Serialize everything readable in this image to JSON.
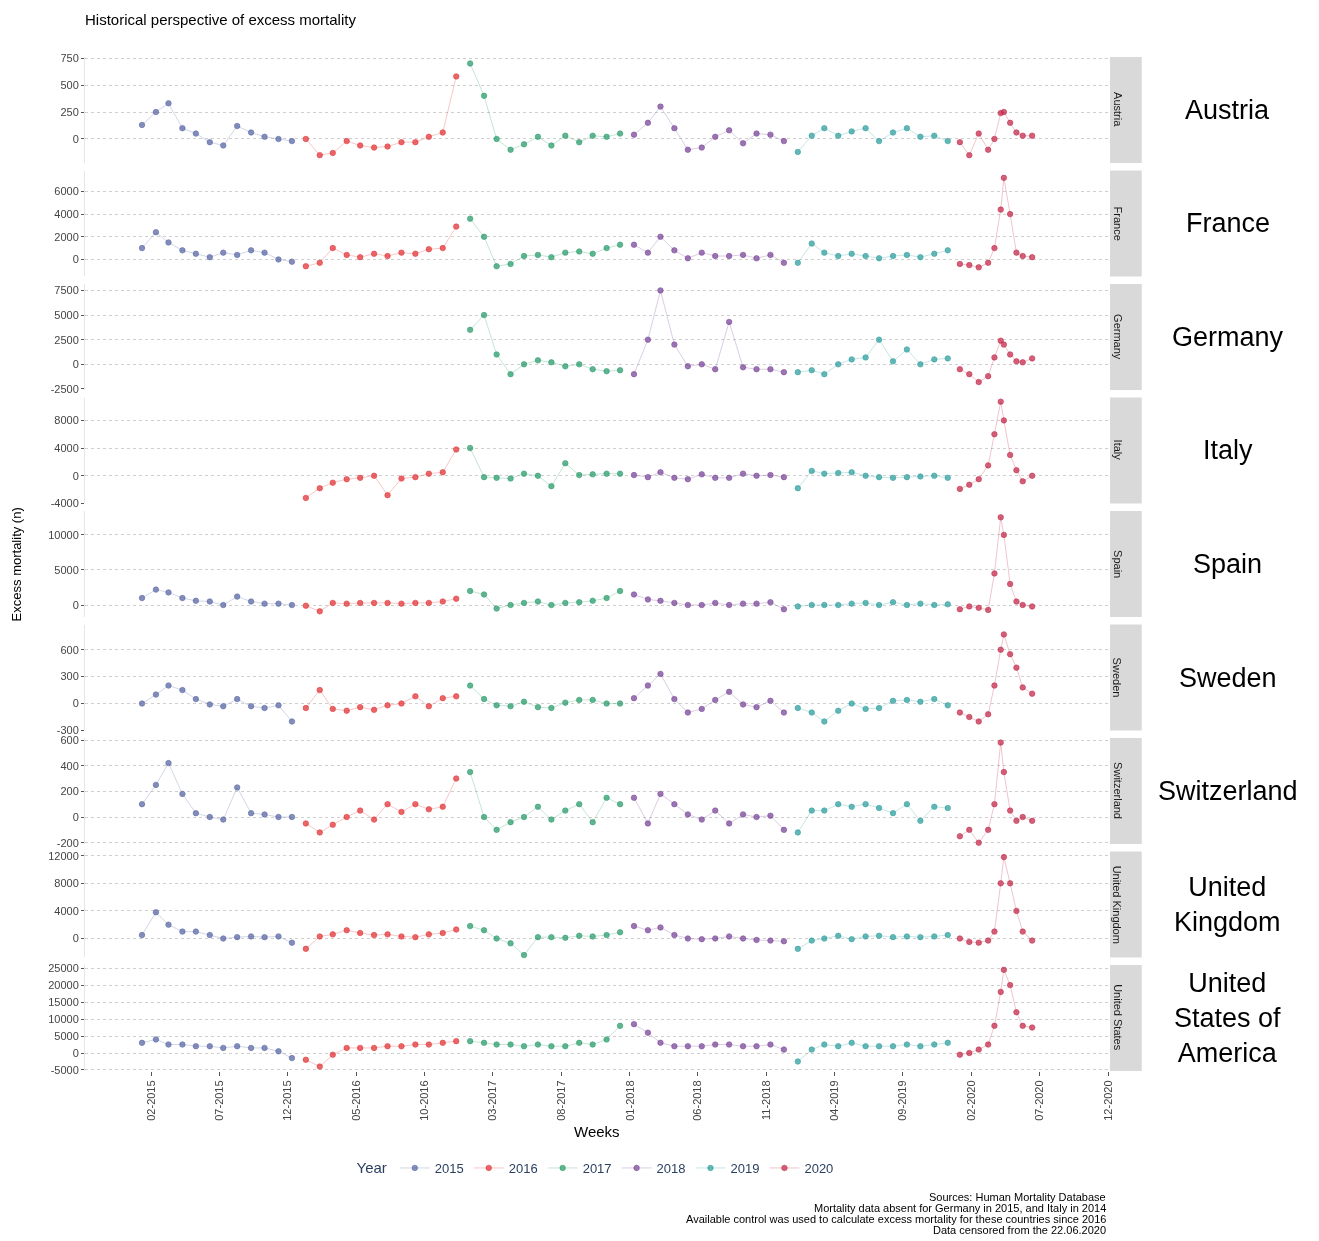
{
  "chart_data": [
    {
      "type": "line",
      "title": "Historical perspective of excess mortality",
      "legend_title": "Year",
      "legend": "bottom",
      "marker": "circle",
      "grid": "y",
      "tick_labels": "y",
      "xlim": [
        "2014-09-05",
        "2020-12-01"
      ],
      "ylim": [
        -222,
        760
      ],
      "yticks": [
        0,
        250,
        500,
        750
      ],
      "annotations": [
        "Austria",
        "Austria"
      ],
      "series": [
        {
          "name": "2015",
          "color": "#5c6aa6",
          "x": [
            "2015-01-10",
            "2015-02-10",
            "2015-03-10",
            "2015-04-10",
            "2015-05-10",
            "2015-06-10",
            "2015-07-10",
            "2015-08-10",
            "2015-09-10",
            "2015-10-10",
            "2015-11-10",
            "2015-12-10"
          ],
          "values": [
            130,
            250,
            330,
            100,
            50,
            -30,
            -60,
            120,
            60,
            20,
            0,
            -20
          ]
        },
        {
          "name": "2016",
          "color": "#e2373a",
          "x": [
            "2016-01-10",
            "2016-02-10",
            "2016-03-10",
            "2016-04-10",
            "2016-05-10",
            "2016-06-10",
            "2016-07-10",
            "2016-08-10",
            "2016-09-10",
            "2016-10-10",
            "2016-11-10",
            "2016-12-10"
          ],
          "values": [
            0,
            -150,
            -130,
            -20,
            -60,
            -80,
            -70,
            -30,
            -30,
            20,
            60,
            580
          ]
        },
        {
          "name": "2017",
          "color": "#2e9e6e",
          "x": [
            "2017-01-10",
            "2017-02-10",
            "2017-03-10",
            "2017-04-10",
            "2017-05-10",
            "2017-06-10",
            "2017-07-10",
            "2017-08-10",
            "2017-09-10",
            "2017-10-10",
            "2017-11-10",
            "2017-12-10"
          ],
          "values": [
            700,
            400,
            0,
            -100,
            -50,
            20,
            -60,
            30,
            -30,
            30,
            20,
            50
          ]
        },
        {
          "name": "2018",
          "color": "#7c4a9a",
          "x": [
            "2018-01-10",
            "2018-02-10",
            "2018-03-10",
            "2018-04-10",
            "2018-05-10",
            "2018-06-10",
            "2018-07-10",
            "2018-08-10",
            "2018-09-10",
            "2018-10-10",
            "2018-11-10",
            "2018-12-10"
          ],
          "values": [
            40,
            150,
            300,
            100,
            -100,
            -80,
            20,
            80,
            -40,
            50,
            40,
            -20
          ]
        },
        {
          "name": "2019",
          "color": "#33a0a0",
          "x": [
            "2019-01-10",
            "2019-02-10",
            "2019-03-10",
            "2019-04-10",
            "2019-05-10",
            "2019-06-10",
            "2019-07-10",
            "2019-08-10",
            "2019-09-10",
            "2019-10-10",
            "2019-11-10",
            "2019-12-10"
          ],
          "values": [
            -120,
            30,
            100,
            30,
            70,
            100,
            -20,
            60,
            100,
            20,
            30,
            -20
          ]
        },
        {
          "name": "2020",
          "color": "#c42e4e",
          "x": [
            "2020-01-06",
            "2020-01-27",
            "2020-02-17",
            "2020-03-09",
            "2020-03-23",
            "2020-04-06",
            "2020-04-13",
            "2020-04-27",
            "2020-05-11",
            "2020-05-25",
            "2020-06-15"
          ],
          "values": [
            -30,
            -150,
            50,
            -100,
            0,
            240,
            250,
            150,
            60,
            30,
            30
          ]
        }
      ]
    },
    {
      "type": "line",
      "marker": "circle",
      "grid": "y",
      "tick_labels": "y",
      "xlim": [
        "2014-09-05",
        "2020-12-01"
      ],
      "ylim": [
        -1500,
        7850
      ],
      "yticks": [
        0,
        2000,
        4000,
        6000
      ],
      "annotations": [
        "France",
        "France"
      ],
      "series": [
        {
          "color": "#5c6aa6",
          "x": [
            "2015-01-10",
            "2015-02-10",
            "2015-03-10",
            "2015-04-10",
            "2015-05-10",
            "2015-06-10",
            "2015-07-10",
            "2015-08-10",
            "2015-09-10",
            "2015-10-10",
            "2015-11-10",
            "2015-12-10"
          ],
          "values": [
            1000,
            2400,
            1500,
            800,
            500,
            200,
            600,
            400,
            800,
            600,
            0,
            -200
          ]
        },
        {
          "color": "#e2373a",
          "x": [
            "2016-01-10",
            "2016-02-10",
            "2016-03-10",
            "2016-04-10",
            "2016-05-10",
            "2016-06-10",
            "2016-07-10",
            "2016-08-10",
            "2016-09-10",
            "2016-10-10",
            "2016-11-10",
            "2016-12-10"
          ],
          "values": [
            -600,
            -300,
            1000,
            400,
            200,
            500,
            300,
            600,
            500,
            900,
            1000,
            2900
          ]
        },
        {
          "color": "#2e9e6e",
          "x": [
            "2017-01-10",
            "2017-02-10",
            "2017-03-10",
            "2017-04-10",
            "2017-05-10",
            "2017-06-10",
            "2017-07-10",
            "2017-08-10",
            "2017-09-10",
            "2017-10-10",
            "2017-11-10",
            "2017-12-10"
          ],
          "values": [
            3600,
            2000,
            -600,
            -400,
            300,
            400,
            200,
            600,
            700,
            500,
            1000,
            1300
          ]
        },
        {
          "color": "#7c4a9a",
          "x": [
            "2018-01-10",
            "2018-02-10",
            "2018-03-10",
            "2018-04-10",
            "2018-05-10",
            "2018-06-10",
            "2018-07-10",
            "2018-08-10",
            "2018-09-10",
            "2018-10-10",
            "2018-11-10",
            "2018-12-10"
          ],
          "values": [
            1300,
            600,
            2000,
            800,
            100,
            600,
            300,
            300,
            400,
            100,
            400,
            -300
          ]
        },
        {
          "color": "#33a0a0",
          "x": [
            "2019-01-10",
            "2019-02-10",
            "2019-03-10",
            "2019-04-10",
            "2019-05-10",
            "2019-06-10",
            "2019-07-10",
            "2019-08-10",
            "2019-09-10",
            "2019-10-10",
            "2019-11-10",
            "2019-12-10"
          ],
          "values": [
            -300,
            1400,
            600,
            300,
            500,
            300,
            100,
            300,
            400,
            200,
            500,
            800
          ]
        },
        {
          "color": "#c42e4e",
          "x": [
            "2020-01-06",
            "2020-01-27",
            "2020-02-17",
            "2020-03-09",
            "2020-03-23",
            "2020-04-06",
            "2020-04-13",
            "2020-04-27",
            "2020-05-11",
            "2020-05-25",
            "2020-06-15"
          ],
          "values": [
            -400,
            -500,
            -700,
            -300,
            1000,
            4400,
            7200,
            4000,
            600,
            300,
            200
          ]
        }
      ]
    },
    {
      "type": "line",
      "marker": "circle",
      "grid": "y",
      "tick_labels": "y",
      "xlim": [
        "2014-09-05",
        "2020-12-01"
      ],
      "ylim": [
        -2600,
        8150
      ],
      "yticks": [
        -2500,
        0,
        2500,
        5000,
        7500
      ],
      "annotations": [
        "Germany",
        "Germany"
      ],
      "series": [
        {
          "color": "#2e9e6e",
          "x": [
            "2017-01-10",
            "2017-02-10",
            "2017-03-10",
            "2017-04-10",
            "2017-05-10",
            "2017-06-10",
            "2017-07-10",
            "2017-08-10",
            "2017-09-10",
            "2017-10-10",
            "2017-11-10",
            "2017-12-10"
          ],
          "values": [
            3500,
            5000,
            1000,
            -1000,
            0,
            400,
            200,
            -200,
            0,
            -500,
            -700,
            -600
          ]
        },
        {
          "color": "#7c4a9a",
          "x": [
            "2018-01-10",
            "2018-02-10",
            "2018-03-10",
            "2018-04-10",
            "2018-05-10",
            "2018-06-10",
            "2018-07-10",
            "2018-08-10",
            "2018-09-10",
            "2018-10-10",
            "2018-11-10",
            "2018-12-10"
          ],
          "values": [
            -1000,
            2500,
            7500,
            2000,
            -200,
            0,
            -500,
            4300,
            -300,
            -500,
            -500,
            -800
          ]
        },
        {
          "color": "#33a0a0",
          "x": [
            "2019-01-10",
            "2019-02-10",
            "2019-03-10",
            "2019-04-10",
            "2019-05-10",
            "2019-06-10",
            "2019-07-10",
            "2019-08-10",
            "2019-09-10",
            "2019-10-10",
            "2019-11-10",
            "2019-12-10"
          ],
          "values": [
            -800,
            -600,
            -1000,
            0,
            500,
            700,
            2500,
            300,
            1500,
            0,
            500,
            600
          ]
        },
        {
          "color": "#c42e4e",
          "x": [
            "2020-01-06",
            "2020-01-27",
            "2020-02-17",
            "2020-03-09",
            "2020-03-23",
            "2020-04-06",
            "2020-04-13",
            "2020-04-27",
            "2020-05-11",
            "2020-05-25",
            "2020-06-15"
          ],
          "values": [
            -500,
            -1000,
            -1800,
            -1200,
            700,
            2400,
            2000,
            1000,
            300,
            200,
            600
          ]
        }
      ]
    },
    {
      "type": "line",
      "marker": "circle",
      "grid": "y",
      "tick_labels": "y",
      "xlim": [
        "2014-09-05",
        "2020-12-01"
      ],
      "ylim": [
        -4000,
        11300
      ],
      "yticks": [
        -4000,
        0,
        4000,
        8000
      ],
      "annotations": [
        "Italy",
        "Italy"
      ],
      "series": [
        {
          "color": "#e2373a",
          "x": [
            "2016-01-10",
            "2016-02-10",
            "2016-03-10",
            "2016-04-10",
            "2016-05-10",
            "2016-06-10",
            "2016-07-10",
            "2016-08-10",
            "2016-09-10",
            "2016-10-10",
            "2016-11-10",
            "2016-12-10"
          ],
          "values": [
            -3200,
            -1800,
            -1000,
            -500,
            -300,
            0,
            -2800,
            -400,
            -200,
            300,
            500,
            3800
          ]
        },
        {
          "color": "#2e9e6e",
          "x": [
            "2017-01-10",
            "2017-02-10",
            "2017-03-10",
            "2017-04-10",
            "2017-05-10",
            "2017-06-10",
            "2017-07-10",
            "2017-08-10",
            "2017-09-10",
            "2017-10-10",
            "2017-11-10",
            "2017-12-10"
          ],
          "values": [
            4000,
            -200,
            -300,
            -400,
            300,
            0,
            -1500,
            1800,
            100,
            200,
            300,
            300
          ]
        },
        {
          "color": "#7c4a9a",
          "x": [
            "2018-01-10",
            "2018-02-10",
            "2018-03-10",
            "2018-04-10",
            "2018-05-10",
            "2018-06-10",
            "2018-07-10",
            "2018-08-10",
            "2018-09-10",
            "2018-10-10",
            "2018-11-10",
            "2018-12-10"
          ],
          "values": [
            100,
            -200,
            500,
            -300,
            -500,
            200,
            -300,
            -300,
            300,
            0,
            100,
            -200
          ]
        },
        {
          "color": "#33a0a0",
          "x": [
            "2019-01-10",
            "2019-02-10",
            "2019-03-10",
            "2019-04-10",
            "2019-05-10",
            "2019-06-10",
            "2019-07-10",
            "2019-08-10",
            "2019-09-10",
            "2019-10-10",
            "2019-11-10",
            "2019-12-10"
          ],
          "values": [
            -1800,
            700,
            300,
            400,
            500,
            0,
            -200,
            -300,
            -200,
            -100,
            0,
            -300
          ]
        },
        {
          "color": "#c42e4e",
          "x": [
            "2020-01-06",
            "2020-01-27",
            "2020-02-17",
            "2020-03-09",
            "2020-03-23",
            "2020-04-06",
            "2020-04-13",
            "2020-04-27",
            "2020-05-11",
            "2020-05-25",
            "2020-06-15"
          ],
          "values": [
            -1900,
            -1300,
            -500,
            1500,
            6000,
            10700,
            8000,
            3000,
            800,
            -800,
            0
          ]
        }
      ]
    },
    {
      "type": "line",
      "ylabel": "Excess mortality (n)",
      "marker": "circle",
      "grid": "y",
      "tick_labels": "y",
      "xlim": [
        "2014-09-05",
        "2020-12-01"
      ],
      "ylim": [
        -1700,
        13400
      ],
      "yticks": [
        0,
        5000,
        10000
      ],
      "annotations": [
        "Spain",
        "Spain"
      ],
      "series": [
        {
          "color": "#5c6aa6",
          "x": [
            "2015-01-10",
            "2015-02-10",
            "2015-03-10",
            "2015-04-10",
            "2015-05-10",
            "2015-06-10",
            "2015-07-10",
            "2015-08-10",
            "2015-09-10",
            "2015-10-10",
            "2015-11-10",
            "2015-12-10"
          ],
          "values": [
            1000,
            2200,
            1800,
            1000,
            600,
            500,
            0,
            1200,
            500,
            200,
            200,
            0
          ]
        },
        {
          "color": "#e2373a",
          "x": [
            "2016-01-10",
            "2016-02-10",
            "2016-03-10",
            "2016-04-10",
            "2016-05-10",
            "2016-06-10",
            "2016-07-10",
            "2016-08-10",
            "2016-09-10",
            "2016-10-10",
            "2016-11-10",
            "2016-12-10"
          ],
          "values": [
            -100,
            -900,
            300,
            200,
            300,
            300,
            300,
            200,
            300,
            300,
            500,
            900
          ]
        },
        {
          "color": "#2e9e6e",
          "x": [
            "2017-01-10",
            "2017-02-10",
            "2017-03-10",
            "2017-04-10",
            "2017-05-10",
            "2017-06-10",
            "2017-07-10",
            "2017-08-10",
            "2017-09-10",
            "2017-10-10",
            "2017-11-10",
            "2017-12-10"
          ],
          "values": [
            2000,
            1500,
            -500,
            0,
            300,
            500,
            0,
            300,
            400,
            600,
            1000,
            2000
          ]
        },
        {
          "color": "#7c4a9a",
          "x": [
            "2018-01-10",
            "2018-02-10",
            "2018-03-10",
            "2018-04-10",
            "2018-05-10",
            "2018-06-10",
            "2018-07-10",
            "2018-08-10",
            "2018-09-10",
            "2018-10-10",
            "2018-11-10",
            "2018-12-10"
          ],
          "values": [
            1500,
            800,
            600,
            300,
            0,
            0,
            300,
            0,
            200,
            200,
            400,
            -600
          ]
        },
        {
          "color": "#33a0a0",
          "x": [
            "2019-01-10",
            "2019-02-10",
            "2019-03-10",
            "2019-04-10",
            "2019-05-10",
            "2019-06-10",
            "2019-07-10",
            "2019-08-10",
            "2019-09-10",
            "2019-10-10",
            "2019-11-10",
            "2019-12-10"
          ],
          "values": [
            -200,
            0,
            0,
            0,
            200,
            300,
            0,
            400,
            0,
            200,
            0,
            100
          ]
        },
        {
          "color": "#c42e4e",
          "x": [
            "2020-01-06",
            "2020-01-27",
            "2020-02-17",
            "2020-03-09",
            "2020-03-23",
            "2020-04-06",
            "2020-04-13",
            "2020-04-27",
            "2020-05-11",
            "2020-05-25",
            "2020-06-15"
          ],
          "values": [
            -600,
            -200,
            -400,
            -700,
            4500,
            12500,
            10000,
            3000,
            500,
            0,
            -200
          ]
        }
      ]
    },
    {
      "type": "line",
      "marker": "circle",
      "grid": "y",
      "tick_labels": "y",
      "xlim": [
        "2014-09-05",
        "2020-12-01"
      ],
      "ylim": [
        -300,
        880
      ],
      "yticks": [
        -300,
        0,
        300,
        600
      ],
      "annotations": [
        "Sweden",
        "Sweden"
      ],
      "series": [
        {
          "color": "#5c6aa6",
          "x": [
            "2015-01-10",
            "2015-02-10",
            "2015-03-10",
            "2015-04-10",
            "2015-05-10",
            "2015-06-10",
            "2015-07-10",
            "2015-08-10",
            "2015-09-10",
            "2015-10-10",
            "2015-11-10",
            "2015-12-10"
          ],
          "values": [
            0,
            100,
            200,
            150,
            50,
            -10,
            -30,
            50,
            -30,
            -50,
            -20,
            -200
          ]
        },
        {
          "color": "#e2373a",
          "x": [
            "2016-01-10",
            "2016-02-10",
            "2016-03-10",
            "2016-04-10",
            "2016-05-10",
            "2016-06-10",
            "2016-07-10",
            "2016-08-10",
            "2016-09-10",
            "2016-10-10",
            "2016-11-10",
            "2016-12-10"
          ],
          "values": [
            -50,
            150,
            -60,
            -80,
            -40,
            -70,
            -20,
            0,
            80,
            -30,
            60,
            80
          ]
        },
        {
          "color": "#2e9e6e",
          "x": [
            "2017-01-10",
            "2017-02-10",
            "2017-03-10",
            "2017-04-10",
            "2017-05-10",
            "2017-06-10",
            "2017-07-10",
            "2017-08-10",
            "2017-09-10",
            "2017-10-10",
            "2017-11-10",
            "2017-12-10"
          ],
          "values": [
            200,
            50,
            -20,
            -30,
            20,
            -40,
            -50,
            10,
            40,
            40,
            0,
            0
          ]
        },
        {
          "color": "#7c4a9a",
          "x": [
            "2018-01-10",
            "2018-02-10",
            "2018-03-10",
            "2018-04-10",
            "2018-05-10",
            "2018-06-10",
            "2018-07-10",
            "2018-08-10",
            "2018-09-10",
            "2018-10-10",
            "2018-11-10",
            "2018-12-10"
          ],
          "values": [
            60,
            200,
            330,
            50,
            -100,
            -60,
            40,
            130,
            -10,
            -40,
            30,
            -100
          ]
        },
        {
          "color": "#33a0a0",
          "x": [
            "2019-01-10",
            "2019-02-10",
            "2019-03-10",
            "2019-04-10",
            "2019-05-10",
            "2019-06-10",
            "2019-07-10",
            "2019-08-10",
            "2019-09-10",
            "2019-10-10",
            "2019-11-10",
            "2019-12-10"
          ],
          "values": [
            -50,
            -100,
            -200,
            -80,
            0,
            -60,
            -50,
            30,
            40,
            20,
            50,
            -20
          ]
        },
        {
          "color": "#c42e4e",
          "x": [
            "2020-01-06",
            "2020-01-27",
            "2020-02-17",
            "2020-03-09",
            "2020-03-23",
            "2020-04-06",
            "2020-04-13",
            "2020-04-27",
            "2020-05-11",
            "2020-05-25",
            "2020-06-15"
          ],
          "values": [
            -100,
            -150,
            -200,
            -120,
            200,
            600,
            770,
            550,
            400,
            180,
            110
          ]
        }
      ]
    },
    {
      "type": "line",
      "marker": "circle",
      "grid": "y",
      "tick_labels": "y",
      "xlim": [
        "2014-09-05",
        "2020-12-01"
      ],
      "ylim": [
        -210,
        615
      ],
      "yticks": [
        -200,
        0,
        200,
        400,
        600
      ],
      "annotations": [
        "Switzerland",
        "Switzerland"
      ],
      "series": [
        {
          "color": "#5c6aa6",
          "x": [
            "2015-01-10",
            "2015-02-10",
            "2015-03-10",
            "2015-04-10",
            "2015-05-10",
            "2015-06-10",
            "2015-07-10",
            "2015-08-10",
            "2015-09-10",
            "2015-10-10",
            "2015-11-10",
            "2015-12-10"
          ],
          "values": [
            100,
            250,
            420,
            180,
            30,
            0,
            -20,
            230,
            30,
            20,
            0,
            0
          ]
        },
        {
          "color": "#e2373a",
          "x": [
            "2016-01-10",
            "2016-02-10",
            "2016-03-10",
            "2016-04-10",
            "2016-05-10",
            "2016-06-10",
            "2016-07-10",
            "2016-08-10",
            "2016-09-10",
            "2016-10-10",
            "2016-11-10",
            "2016-12-10"
          ],
          "values": [
            -50,
            -120,
            -60,
            0,
            50,
            -20,
            100,
            40,
            100,
            60,
            80,
            300
          ]
        },
        {
          "color": "#2e9e6e",
          "x": [
            "2017-01-10",
            "2017-02-10",
            "2017-03-10",
            "2017-04-10",
            "2017-05-10",
            "2017-06-10",
            "2017-07-10",
            "2017-08-10",
            "2017-09-10",
            "2017-10-10",
            "2017-11-10",
            "2017-12-10"
          ],
          "values": [
            350,
            0,
            -100,
            -40,
            0,
            80,
            -20,
            50,
            100,
            -40,
            150,
            100
          ]
        },
        {
          "color": "#7c4a9a",
          "x": [
            "2018-01-10",
            "2018-02-10",
            "2018-03-10",
            "2018-04-10",
            "2018-05-10",
            "2018-06-10",
            "2018-07-10",
            "2018-08-10",
            "2018-09-10",
            "2018-10-10",
            "2018-11-10",
            "2018-12-10"
          ],
          "values": [
            150,
            -50,
            180,
            100,
            20,
            -20,
            50,
            -50,
            20,
            0,
            10,
            -100
          ]
        },
        {
          "color": "#33a0a0",
          "x": [
            "2019-01-10",
            "2019-02-10",
            "2019-03-10",
            "2019-04-10",
            "2019-05-10",
            "2019-06-10",
            "2019-07-10",
            "2019-08-10",
            "2019-09-10",
            "2019-10-10",
            "2019-11-10",
            "2019-12-10"
          ],
          "values": [
            -120,
            50,
            50,
            100,
            80,
            100,
            70,
            30,
            100,
            -30,
            80,
            70
          ]
        },
        {
          "color": "#c42e4e",
          "x": [
            "2020-01-06",
            "2020-01-27",
            "2020-02-17",
            "2020-03-09",
            "2020-03-23",
            "2020-04-06",
            "2020-04-13",
            "2020-04-27",
            "2020-05-11",
            "2020-05-25",
            "2020-06-15"
          ],
          "values": [
            -150,
            -100,
            -200,
            -100,
            100,
            580,
            350,
            50,
            -30,
            0,
            -30
          ]
        }
      ]
    },
    {
      "type": "line",
      "marker": "circle",
      "grid": "y",
      "tick_labels": "y",
      "xlim": [
        "2014-09-05",
        "2020-12-01"
      ],
      "ylim": [
        -2750,
        12600
      ],
      "yticks": [
        0,
        4000,
        8000,
        12000
      ],
      "annotations": [
        "United Kingdom",
        "United Kingdom"
      ],
      "series": [
        {
          "color": "#5c6aa6",
          "x": [
            "2015-01-10",
            "2015-02-10",
            "2015-03-10",
            "2015-04-10",
            "2015-05-10",
            "2015-06-10",
            "2015-07-10",
            "2015-08-10",
            "2015-09-10",
            "2015-10-10",
            "2015-11-10",
            "2015-12-10"
          ],
          "values": [
            500,
            3800,
            2000,
            1000,
            1000,
            500,
            0,
            200,
            300,
            200,
            300,
            -600
          ]
        },
        {
          "color": "#e2373a",
          "x": [
            "2016-01-10",
            "2016-02-10",
            "2016-03-10",
            "2016-04-10",
            "2016-05-10",
            "2016-06-10",
            "2016-07-10",
            "2016-08-10",
            "2016-09-10",
            "2016-10-10",
            "2016-11-10",
            "2016-12-10"
          ],
          "values": [
            -1500,
            300,
            600,
            1200,
            800,
            500,
            600,
            300,
            200,
            600,
            800,
            1300
          ]
        },
        {
          "color": "#2e9e6e",
          "x": [
            "2017-01-10",
            "2017-02-10",
            "2017-03-10",
            "2017-04-10",
            "2017-05-10",
            "2017-06-10",
            "2017-07-10",
            "2017-08-10",
            "2017-09-10",
            "2017-10-10",
            "2017-11-10",
            "2017-12-10"
          ],
          "values": [
            1800,
            1200,
            0,
            -700,
            -2400,
            200,
            200,
            100,
            400,
            300,
            500,
            900
          ]
        },
        {
          "color": "#7c4a9a",
          "x": [
            "2018-01-10",
            "2018-02-10",
            "2018-03-10",
            "2018-04-10",
            "2018-05-10",
            "2018-06-10",
            "2018-07-10",
            "2018-08-10",
            "2018-09-10",
            "2018-10-10",
            "2018-11-10",
            "2018-12-10"
          ],
          "values": [
            1800,
            1200,
            1600,
            500,
            0,
            -100,
            0,
            300,
            0,
            -200,
            -300,
            -400
          ]
        },
        {
          "color": "#33a0a0",
          "x": [
            "2019-01-10",
            "2019-02-10",
            "2019-03-10",
            "2019-04-10",
            "2019-05-10",
            "2019-06-10",
            "2019-07-10",
            "2019-08-10",
            "2019-09-10",
            "2019-10-10",
            "2019-11-10",
            "2019-12-10"
          ],
          "values": [
            -1500,
            -300,
            0,
            400,
            -100,
            300,
            400,
            200,
            300,
            200,
            300,
            500
          ]
        },
        {
          "color": "#c42e4e",
          "x": [
            "2020-01-06",
            "2020-01-27",
            "2020-02-17",
            "2020-03-09",
            "2020-03-23",
            "2020-04-06",
            "2020-04-13",
            "2020-04-27",
            "2020-05-11",
            "2020-05-25",
            "2020-06-15"
          ],
          "values": [
            0,
            -500,
            -600,
            -300,
            1000,
            8000,
            11800,
            8000,
            4000,
            1000,
            -300
          ]
        }
      ]
    },
    {
      "type": "line",
      "xlabel": "Weeks",
      "marker": "circle",
      "grid": "y",
      "xlim": [
        "2014-09-05",
        "2020-12-01"
      ],
      "ylim": [
        -5300,
        25900
      ],
      "yticks": [
        -5000,
        0,
        5000,
        10000,
        15000,
        20000,
        25000
      ],
      "xticks": [
        {
          "value": "2015-02-01",
          "label": "02-2015"
        },
        {
          "value": "2015-07-01",
          "label": "07-2015"
        },
        {
          "value": "2015-12-01",
          "label": "12-2015"
        },
        {
          "value": "2016-05-01",
          "label": "05-2016"
        },
        {
          "value": "2016-10-01",
          "label": "10-2016"
        },
        {
          "value": "2017-03-01",
          "label": "03-2017"
        },
        {
          "value": "2017-08-01",
          "label": "08-2017"
        },
        {
          "value": "2018-01-01",
          "label": "01-2018"
        },
        {
          "value": "2018-06-01",
          "label": "06-2018"
        },
        {
          "value": "2018-11-01",
          "label": "11-2018"
        },
        {
          "value": "2019-04-01",
          "label": "04-2019"
        },
        {
          "value": "2019-09-01",
          "label": "09-2019"
        },
        {
          "value": "2020-02-01",
          "label": "02-2020"
        },
        {
          "value": "2020-07-01",
          "label": "07-2020"
        },
        {
          "value": "2020-12-01",
          "label": "12-2020"
        }
      ],
      "annotations": [
        "United States",
        "United States of America",
        "Sources: Human Mortality Database",
        "Mortality data absent for Germany in 2015, and Italy in 2014",
        "Available control was used to calculate excess mortality for these countries since 2016",
        "Data censored from the 22.06.2020"
      ],
      "series": [
        {
          "color": "#5c6aa6",
          "x": [
            "2015-01-10",
            "2015-02-10",
            "2015-03-10",
            "2015-04-10",
            "2015-05-10",
            "2015-06-10",
            "2015-07-10",
            "2015-08-10",
            "2015-09-10",
            "2015-10-10",
            "2015-11-10",
            "2015-12-10"
          ],
          "values": [
            3000,
            4000,
            2500,
            2500,
            2000,
            2000,
            1500,
            2000,
            1500,
            1500,
            500,
            -1500
          ]
        },
        {
          "color": "#e2373a",
          "x": [
            "2016-01-10",
            "2016-02-10",
            "2016-03-10",
            "2016-04-10",
            "2016-05-10",
            "2016-06-10",
            "2016-07-10",
            "2016-08-10",
            "2016-09-10",
            "2016-10-10",
            "2016-11-10",
            "2016-12-10"
          ],
          "values": [
            -2000,
            -4000,
            -500,
            1500,
            1500,
            1500,
            2000,
            2000,
            2500,
            2500,
            3000,
            3500
          ]
        },
        {
          "color": "#2e9e6e",
          "x": [
            "2017-01-10",
            "2017-02-10",
            "2017-03-10",
            "2017-04-10",
            "2017-05-10",
            "2017-06-10",
            "2017-07-10",
            "2017-08-10",
            "2017-09-10",
            "2017-10-10",
            "2017-11-10",
            "2017-12-10"
          ],
          "values": [
            3500,
            3000,
            2500,
            2500,
            2000,
            2500,
            2000,
            2000,
            3000,
            2500,
            4000,
            8000
          ]
        },
        {
          "color": "#7c4a9a",
          "x": [
            "2018-01-10",
            "2018-02-10",
            "2018-03-10",
            "2018-04-10",
            "2018-05-10",
            "2018-06-10",
            "2018-07-10",
            "2018-08-10",
            "2018-09-10",
            "2018-10-10",
            "2018-11-10",
            "2018-12-10"
          ],
          "values": [
            8500,
            6000,
            3000,
            2000,
            2000,
            2000,
            2500,
            2500,
            2000,
            2000,
            2500,
            1000
          ]
        },
        {
          "color": "#33a0a0",
          "x": [
            "2019-01-10",
            "2019-02-10",
            "2019-03-10",
            "2019-04-10",
            "2019-05-10",
            "2019-06-10",
            "2019-07-10",
            "2019-08-10",
            "2019-09-10",
            "2019-10-10",
            "2019-11-10",
            "2019-12-10"
          ],
          "values": [
            -2500,
            1000,
            2500,
            2000,
            3000,
            2000,
            2000,
            2000,
            2500,
            2000,
            2500,
            3000
          ]
        },
        {
          "color": "#c42e4e",
          "x": [
            "2020-01-06",
            "2020-01-27",
            "2020-02-17",
            "2020-03-09",
            "2020-03-23",
            "2020-04-06",
            "2020-04-13",
            "2020-04-27",
            "2020-05-11",
            "2020-05-25",
            "2020-06-15"
          ],
          "values": [
            -500,
            0,
            1000,
            2500,
            8000,
            18000,
            24500,
            20000,
            12000,
            8000,
            7500
          ]
        }
      ]
    }
  ]
}
